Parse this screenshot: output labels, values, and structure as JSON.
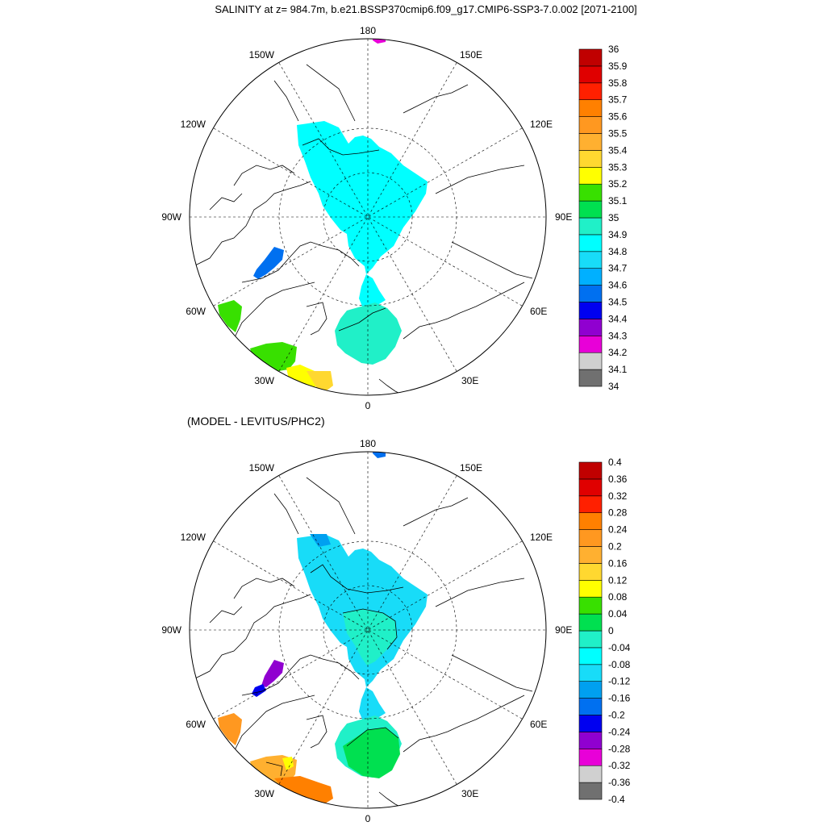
{
  "title": "SALINITY at z= 984.7m, b.e21.BSSP370cmip6.f09_g17.CMIP6-SSP3-7.0.002 [2071-2100]",
  "colors": {
    "salinity": [
      "#707070",
      "#d0d0d0",
      "#e800d8",
      "#9000d0",
      "#0000f0",
      "#0070f0",
      "#00b0ff",
      "#18dcf8",
      "#00ffff",
      "#20f0c8",
      "#00e050",
      "#38e000",
      "#ffff00",
      "#ffd830",
      "#ffb030",
      "#ff9820",
      "#ff8000",
      "#ff2000",
      "#e00000",
      "#c00000"
    ],
    "anomaly": [
      "#707070",
      "#d0d0d0",
      "#e800d8",
      "#9000d0",
      "#0000f0",
      "#0070f0",
      "#00a0f0",
      "#18dcf8",
      "#00ffff",
      "#20f0c8",
      "#00e050",
      "#38e000",
      "#ffff00",
      "#ffd830",
      "#ffb030",
      "#ff9820",
      "#ff8000",
      "#ff2000",
      "#e00000",
      "#c00000"
    ]
  },
  "panels": [
    {
      "id": "salinity",
      "subtitle": "",
      "lon_labels": {
        "top": "180",
        "bottom": "0",
        "left": "90W",
        "right": "90E",
        "upper_left": "150W",
        "upper_right": "150E",
        "mid_upper_left": "120W",
        "mid_upper_right": "120E",
        "mid_lower_left": "60W",
        "mid_lower_right": "60E",
        "lower_left": "30W",
        "lower_right": "30E"
      },
      "colorbar": {
        "labels": [
          "36",
          "35.9",
          "35.8",
          "35.7",
          "35.6",
          "35.5",
          "35.4",
          "35.3",
          "35.2",
          "35.1",
          "35",
          "34.9",
          "34.8",
          "34.7",
          "34.6",
          "34.5",
          "34.4",
          "34.3",
          "34.2",
          "34.1",
          "34"
        ]
      }
    },
    {
      "id": "anomaly",
      "subtitle": "(MODEL - LEVITUS/PHC2)",
      "lon_labels": {
        "top": "180",
        "bottom": "0",
        "left": "90W",
        "right": "90E",
        "upper_left": "150W",
        "upper_right": "150E",
        "mid_upper_left": "120W",
        "mid_upper_right": "120E",
        "mid_lower_left": "60W",
        "mid_lower_right": "60E",
        "lower_left": "30W",
        "lower_right": "30E"
      },
      "colorbar": {
        "labels": [
          "0.4",
          "0.36",
          "0.32",
          "0.28",
          "0.24",
          "0.2",
          "0.16",
          "0.12",
          "0.08",
          "0.04",
          "0",
          "-0.04",
          "-0.08",
          "-0.12",
          "-0.16",
          "-0.2",
          "-0.24",
          "-0.28",
          "-0.32",
          "-0.36",
          "-0.4"
        ]
      }
    }
  ]
}
